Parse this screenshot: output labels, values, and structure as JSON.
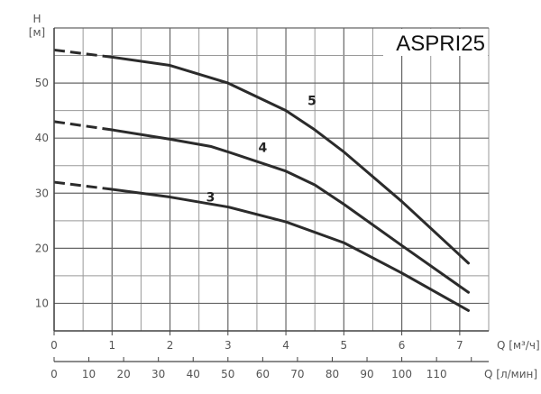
{
  "chart_data": {
    "type": "line",
    "title": "ASPRI25",
    "ylabel": "H",
    "yunit": "[м]",
    "xlabel": "Q [м³/ч]",
    "x2label": "Q [л/мин]",
    "xlim": [
      0,
      7.5
    ],
    "ylim": [
      5,
      60
    ],
    "x2lim": [
      0,
      125
    ],
    "grid": true,
    "x_ticks": [
      "0",
      "1",
      "2",
      "3",
      "4",
      "5",
      "6",
      "7"
    ],
    "x2_ticks": [
      "0",
      "10",
      "20",
      "30",
      "40",
      "50",
      "60",
      "70",
      "80",
      "90",
      "100",
      "110"
    ],
    "y_ticks": [
      "10",
      "20",
      "30",
      "40",
      "50"
    ],
    "line_color": "#2b2b2b",
    "series": [
      {
        "name": "5",
        "label_at": [
          4.45,
          46
        ],
        "dashed": [
          [
            0,
            56
          ],
          [
            1,
            54.7
          ]
        ],
        "points": [
          [
            1,
            54.7
          ],
          [
            2,
            53.2
          ],
          [
            3,
            50
          ],
          [
            4,
            45
          ],
          [
            4.5,
            41.5
          ],
          [
            5,
            37.5
          ],
          [
            6,
            28.5
          ],
          [
            7.15,
            17.3
          ]
        ]
      },
      {
        "name": "4",
        "label_at": [
          3.6,
          37.5
        ],
        "dashed": [
          [
            0,
            43
          ],
          [
            1,
            41.5
          ]
        ],
        "points": [
          [
            1,
            41.5
          ],
          [
            2,
            39.8
          ],
          [
            2.7,
            38.5
          ],
          [
            3,
            37.5
          ],
          [
            4,
            34
          ],
          [
            4.5,
            31.5
          ],
          [
            5,
            28
          ],
          [
            6,
            20.5
          ],
          [
            7.15,
            12
          ]
        ]
      },
      {
        "name": "3",
        "label_at": [
          2.7,
          28.5
        ],
        "dashed": [
          [
            0,
            32
          ],
          [
            1,
            30.7
          ]
        ],
        "points": [
          [
            1,
            30.7
          ],
          [
            2,
            29.3
          ],
          [
            3,
            27.5
          ],
          [
            4,
            24.8
          ],
          [
            5,
            21
          ],
          [
            6,
            15.5
          ],
          [
            7.15,
            8.7
          ]
        ]
      }
    ]
  }
}
